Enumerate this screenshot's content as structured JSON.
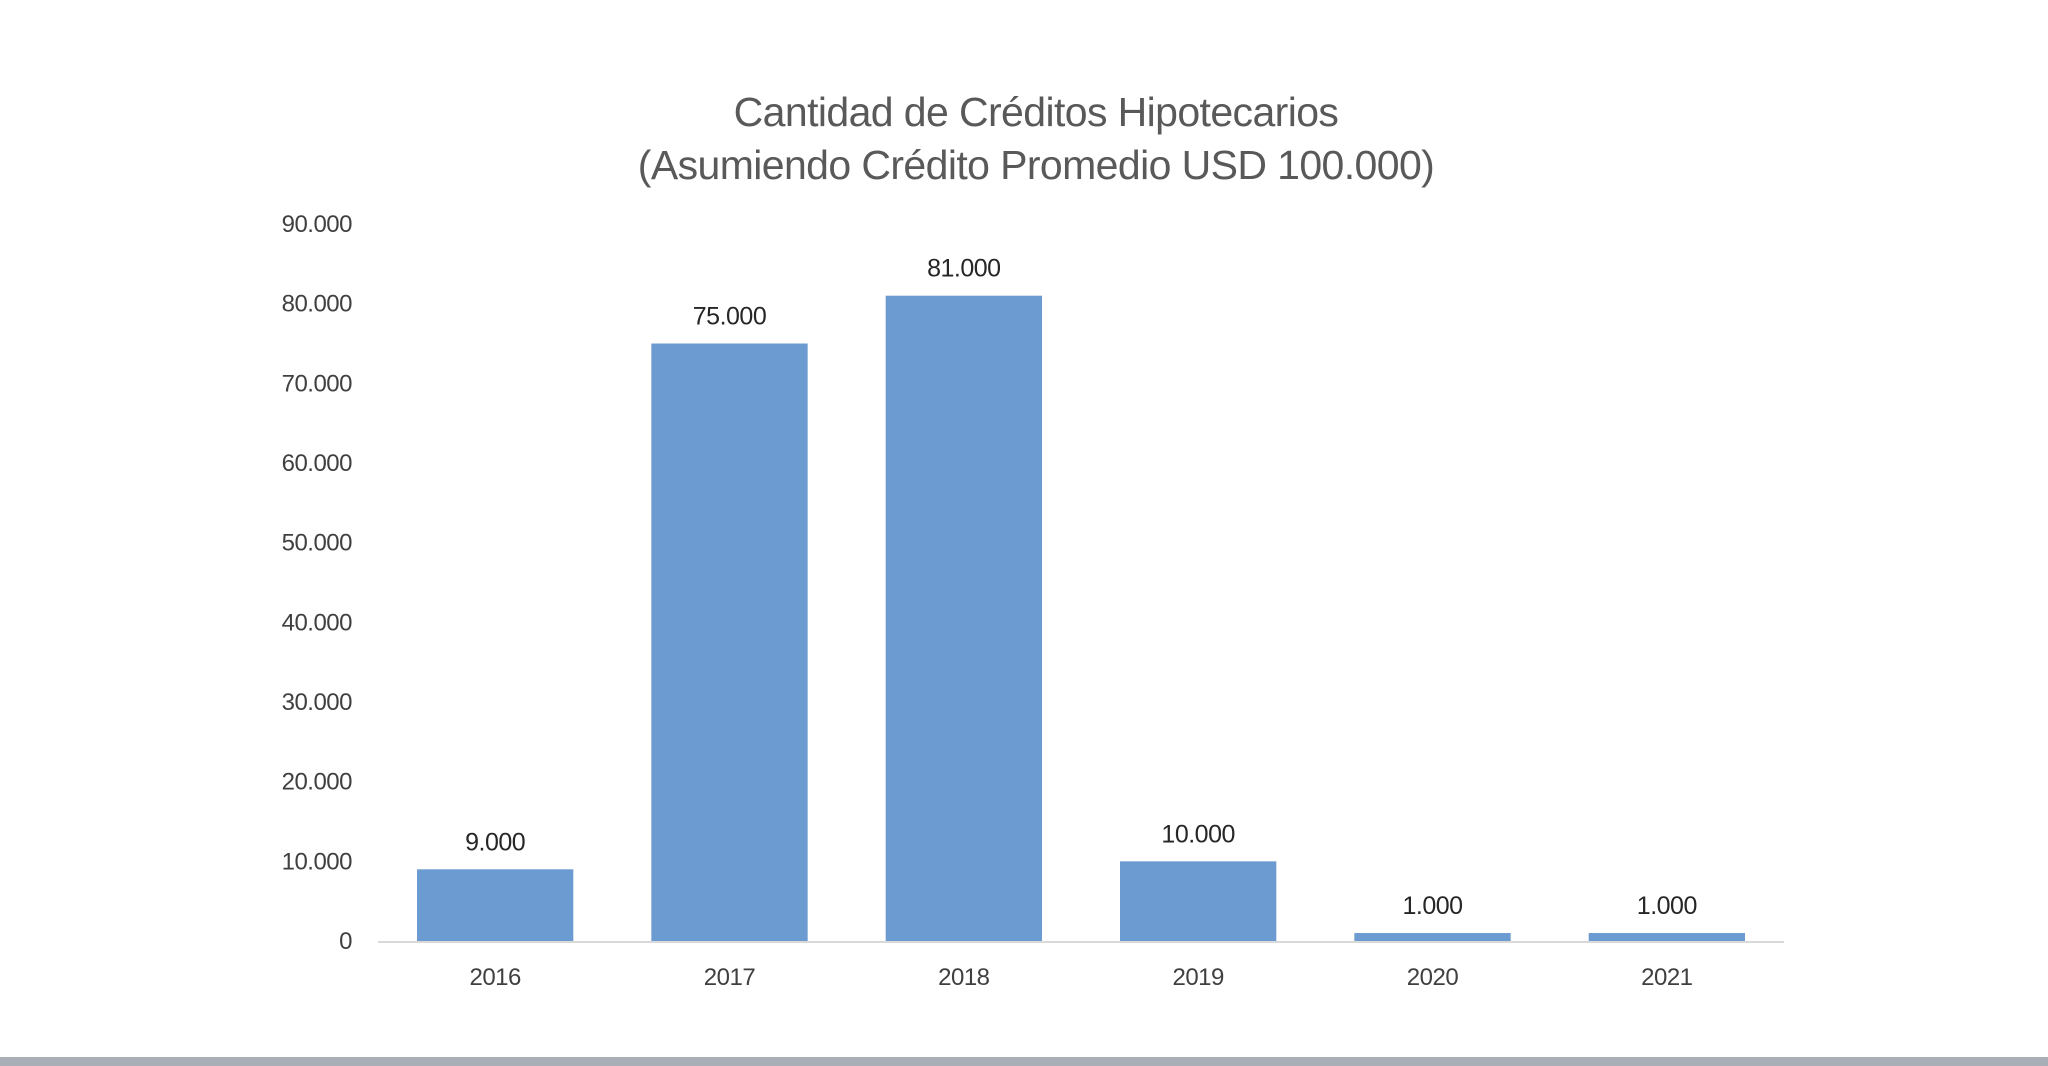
{
  "chart_data": {
    "type": "bar",
    "title": "Cantidad de Créditos Hipotecarios",
    "subtitle": "(Asumiendo Crédito Promedio USD 100.000)",
    "xlabel": "",
    "ylabel": "",
    "categories": [
      "2016",
      "2017",
      "2018",
      "2019",
      "2020",
      "2021"
    ],
    "values": [
      9000,
      75000,
      81000,
      10000,
      1000,
      1000
    ],
    "data_labels": [
      "9.000",
      "75.000",
      "81.000",
      "10.000",
      "1.000",
      "1.000"
    ],
    "ylim": [
      0,
      90000
    ],
    "yticks": [
      0,
      10000,
      20000,
      30000,
      40000,
      50000,
      60000,
      70000,
      80000,
      90000
    ],
    "ytick_labels": [
      "0",
      "10.000",
      "20.000",
      "30.000",
      "40.000",
      "50.000",
      "60.000",
      "70.000",
      "80.000",
      "90.000"
    ],
    "grid": false,
    "legend": "none",
    "bar_color": "#6b9bd0",
    "axis_color": "#d9d9d9"
  }
}
